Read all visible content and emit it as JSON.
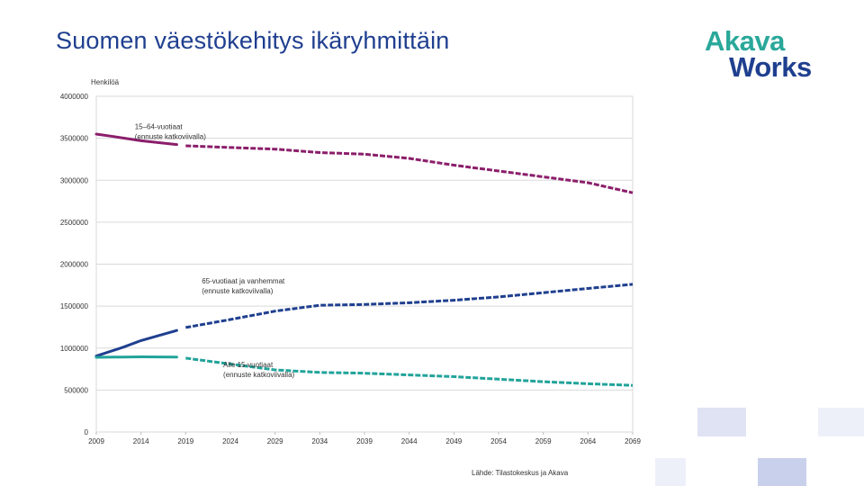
{
  "page": {
    "title": "Suomen väestökehitys ikäryhmittäin"
  },
  "logo": {
    "line1": "Akava",
    "line2": "Works",
    "color1": "#2aa89a",
    "color2": "#1f3f8f"
  },
  "source": "Lähde: Tilastokeskus ja Akava",
  "chart_data": {
    "type": "line",
    "title": "",
    "xlabel": "",
    "ylabel": "Henkilöä",
    "x_ticks": [
      "2009",
      "2014",
      "2019",
      "2024",
      "2029",
      "2034",
      "2039",
      "2044",
      "2049",
      "2054",
      "2059",
      "2064",
      "2069"
    ],
    "y_ticks": [
      "0",
      "500000",
      "1000000",
      "1500000",
      "2000000",
      "2500000",
      "3000000",
      "3500000",
      "4000000"
    ],
    "xlim": [
      2009,
      2069
    ],
    "ylim": [
      0,
      4000000
    ],
    "grid": true,
    "series": [
      {
        "key": "working_age",
        "color": "#8b1e6b",
        "annotation": [
          "15–64-vuotiaat",
          "(ennuste katkoviivalla)"
        ],
        "actual": [
          [
            2009,
            3550000
          ],
          [
            2011,
            3520000
          ],
          [
            2014,
            3470000
          ],
          [
            2018,
            3425000
          ]
        ],
        "forecast": [
          [
            2019,
            3410000
          ],
          [
            2024,
            3390000
          ],
          [
            2029,
            3370000
          ],
          [
            2034,
            3330000
          ],
          [
            2039,
            3310000
          ],
          [
            2044,
            3260000
          ],
          [
            2049,
            3180000
          ],
          [
            2054,
            3110000
          ],
          [
            2059,
            3040000
          ],
          [
            2064,
            2970000
          ],
          [
            2069,
            2850000
          ]
        ]
      },
      {
        "key": "elderly",
        "color": "#1f3f8f",
        "annotation": [
          "65-vuotiaat ja vanhemmat",
          "(ennuste katkoviivalla)"
        ],
        "actual": [
          [
            2009,
            905000
          ],
          [
            2012,
            1010000
          ],
          [
            2014,
            1090000
          ],
          [
            2016,
            1150000
          ],
          [
            2018,
            1210000
          ]
        ],
        "forecast": [
          [
            2019,
            1245000
          ],
          [
            2024,
            1340000
          ],
          [
            2029,
            1440000
          ],
          [
            2034,
            1510000
          ],
          [
            2039,
            1520000
          ],
          [
            2044,
            1540000
          ],
          [
            2049,
            1570000
          ],
          [
            2054,
            1610000
          ],
          [
            2059,
            1660000
          ],
          [
            2064,
            1710000
          ],
          [
            2069,
            1760000
          ]
        ]
      },
      {
        "key": "children",
        "color": "#21a39a",
        "annotation": [
          "Alle 15-vuotiaat",
          "(ennuste katkoviivalla)"
        ],
        "actual": [
          [
            2009,
            890000
          ],
          [
            2012,
            893000
          ],
          [
            2014,
            895000
          ],
          [
            2018,
            893000
          ]
        ],
        "forecast": [
          [
            2019,
            880000
          ],
          [
            2024,
            810000
          ],
          [
            2029,
            740000
          ],
          [
            2034,
            710000
          ],
          [
            2039,
            700000
          ],
          [
            2044,
            680000
          ],
          [
            2049,
            660000
          ],
          [
            2054,
            630000
          ],
          [
            2059,
            600000
          ],
          [
            2064,
            575000
          ],
          [
            2069,
            555000
          ]
        ]
      }
    ]
  },
  "decor": {
    "light": "#eef0f9",
    "mid": "#dfe3f4",
    "dark": "#c9d0ec"
  }
}
